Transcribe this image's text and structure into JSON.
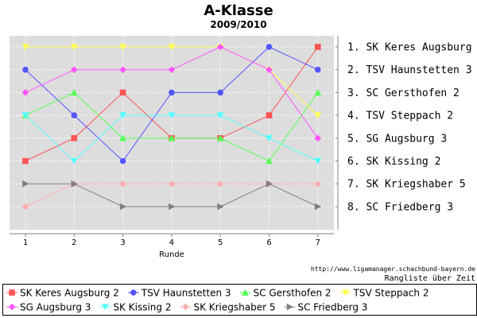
{
  "chart_data": {
    "type": "line",
    "title": "A-Klasse",
    "subtitle": "2009/2010",
    "xlabel": "Runde",
    "x": [
      1,
      2,
      3,
      4,
      5,
      6,
      7
    ],
    "ylim": [
      1,
      8
    ],
    "y_inverted": true,
    "grid": true,
    "legend_position": "bottom",
    "series": [
      {
        "name": "SK Keres Augsburg 2",
        "color": "#ff5555",
        "marker": "square",
        "values": [
          6,
          5,
          3,
          5,
          5,
          4,
          1
        ]
      },
      {
        "name": "TSV Haunstetten 3",
        "color": "#5555ff",
        "marker": "circle",
        "values": [
          2,
          4,
          6,
          3,
          3,
          1,
          2
        ]
      },
      {
        "name": "SC Gersthofen 2",
        "color": "#55ff55",
        "marker": "triangle-up",
        "values": [
          4,
          3,
          5,
          5,
          5,
          6,
          3
        ]
      },
      {
        "name": "TSV Steppach 2",
        "color": "#ffff55",
        "marker": "triangle-down",
        "values": [
          1,
          1,
          1,
          1,
          1,
          2,
          4
        ]
      },
      {
        "name": "SG Augsburg 3",
        "color": "#ff55ff",
        "marker": "diamond",
        "values": [
          3,
          2,
          2,
          2,
          1,
          2,
          5
        ]
      },
      {
        "name": "SK Kissing 2",
        "color": "#55ffff",
        "marker": "triangle-down",
        "values": [
          4,
          6,
          4,
          4,
          4,
          5,
          6
        ]
      },
      {
        "name": "SK Kriegshaber 5",
        "color": "#ffafaf",
        "marker": "diamond",
        "values": [
          8,
          7,
          7,
          7,
          7,
          7,
          7
        ]
      },
      {
        "name": "SC Friedberg 3",
        "color": "#808080",
        "marker": "triangle-right",
        "values": [
          7,
          7,
          8,
          8,
          8,
          7,
          8
        ]
      }
    ],
    "rank_labels": [
      "1. SK Keres Augsburg 2",
      "2. TSV Haunstetten 3",
      "3. SC Gersthofen 2",
      "4. TSV Steppach 2",
      "5. SG Augsburg 3",
      "6. SK Kissing 2",
      "7. SK Kriegshaber 5",
      "8. SC Friedberg 3"
    ]
  },
  "footer": {
    "url": "http://www.ligamanager.schachbund-bayern.de",
    "caption": "Rangliste über Zeit"
  },
  "colors": {
    "plot_background": "#dddddd",
    "grid": "#ffffff",
    "axis": "#808080"
  }
}
